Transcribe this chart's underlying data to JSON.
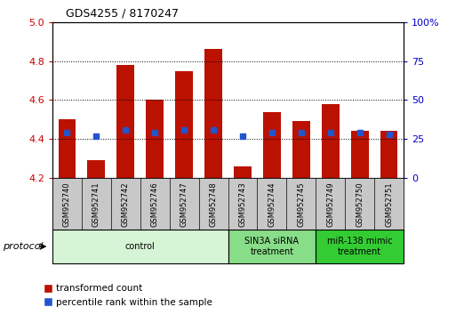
{
  "title": "GDS4255 / 8170247",
  "samples": [
    "GSM952740",
    "GSM952741",
    "GSM952742",
    "GSM952746",
    "GSM952747",
    "GSM952748",
    "GSM952743",
    "GSM952744",
    "GSM952745",
    "GSM952749",
    "GSM952750",
    "GSM952751"
  ],
  "red_values": [
    4.5,
    4.29,
    4.78,
    4.6,
    4.75,
    4.86,
    4.26,
    4.54,
    4.49,
    4.58,
    4.44,
    4.44
  ],
  "blue_pct": [
    29,
    27,
    31,
    29,
    31,
    31,
    27,
    29,
    29,
    29,
    29,
    28
  ],
  "ymin": 4.2,
  "ymax": 5.0,
  "y_ticks_red": [
    4.2,
    4.4,
    4.6,
    4.8,
    5.0
  ],
  "y_ticks_blue_pct": [
    0,
    25,
    50,
    75,
    100
  ],
  "groups": [
    {
      "label": "control",
      "start": 0,
      "end": 6,
      "color": "#d6f5d6"
    },
    {
      "label": "SIN3A siRNA\ntreatment",
      "start": 6,
      "end": 9,
      "color": "#88dd88"
    },
    {
      "label": "miR-138 mimic\ntreatment",
      "start": 9,
      "end": 12,
      "color": "#33cc33"
    }
  ],
  "protocol_label": "protocol",
  "legend_red": "transformed count",
  "legend_blue": "percentile rank within the sample",
  "bar_color_red": "#bb1100",
  "bar_color_blue": "#2255cc",
  "tick_label_color_red": "#cc0000",
  "tick_label_color_blue": "#0000cc",
  "bar_width": 0.6,
  "label_band_color": "#c8c8c8"
}
